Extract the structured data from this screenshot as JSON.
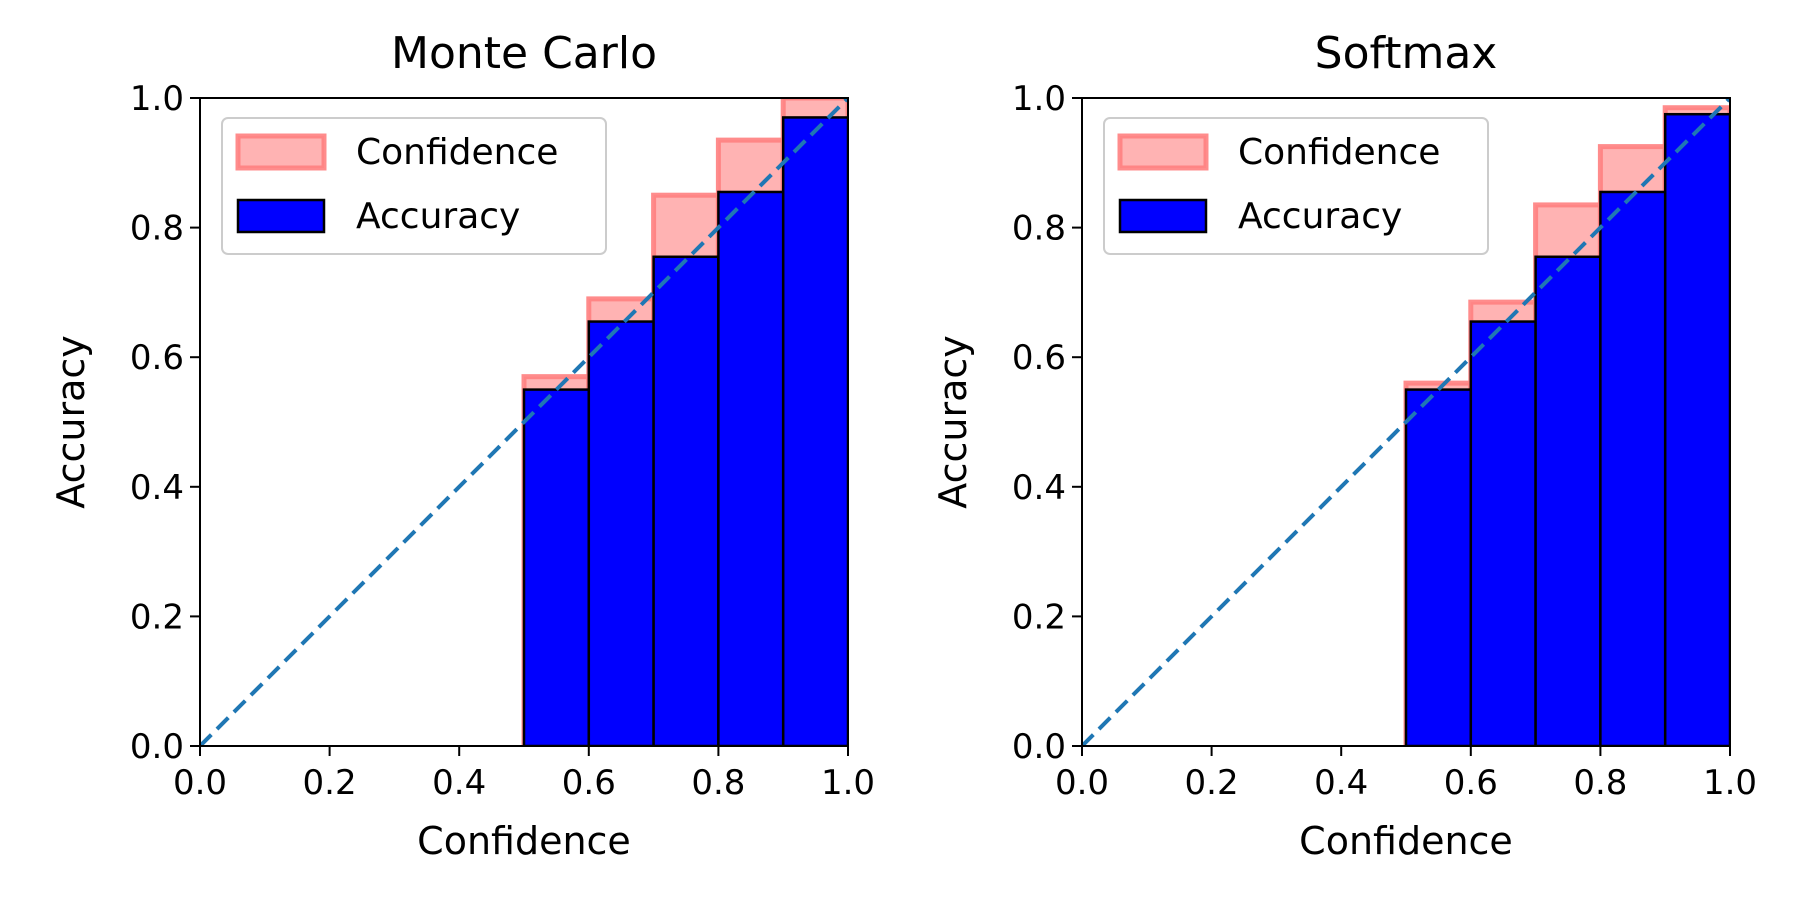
{
  "chart_data": [
    {
      "type": "bar",
      "title": "Monte Carlo",
      "xlabel": "Confidence",
      "ylabel": "Accuracy",
      "xlim": [
        0.0,
        1.0
      ],
      "ylim": [
        0.0,
        1.0
      ],
      "xticks": [
        "0.0",
        "0.2",
        "0.4",
        "0.6",
        "0.8",
        "1.0"
      ],
      "yticks": [
        "0.0",
        "0.2",
        "0.4",
        "0.6",
        "0.8",
        "1.0"
      ],
      "bin_edges": [
        0.0,
        0.1,
        0.2,
        0.3,
        0.4,
        0.5,
        0.6,
        0.7,
        0.8,
        0.9
      ],
      "bin_width": 0.1,
      "series": [
        {
          "name": "Confidence",
          "color": "#ff8080",
          "values": [
            0.0,
            0.0,
            0.0,
            0.0,
            0.0,
            0.57,
            0.69,
            0.85,
            0.935,
            1.0
          ]
        },
        {
          "name": "Accuracy",
          "color": "#0000ff",
          "values": [
            0.0,
            0.0,
            0.0,
            0.0,
            0.0,
            0.55,
            0.655,
            0.755,
            0.855,
            0.97
          ]
        }
      ],
      "reference_line": {
        "style": "dashed",
        "color": "#1f77b4",
        "from": [
          0.0,
          0.0
        ],
        "to": [
          1.0,
          1.0
        ]
      },
      "legend": {
        "placement": "upper-left"
      },
      "grid": false
    },
    {
      "type": "bar",
      "title": "Softmax",
      "xlabel": "Confidence",
      "ylabel": "Accuracy",
      "xlim": [
        0.0,
        1.0
      ],
      "ylim": [
        0.0,
        1.0
      ],
      "xticks": [
        "0.0",
        "0.2",
        "0.4",
        "0.6",
        "0.8",
        "1.0"
      ],
      "yticks": [
        "0.0",
        "0.2",
        "0.4",
        "0.6",
        "0.8",
        "1.0"
      ],
      "bin_edges": [
        0.0,
        0.1,
        0.2,
        0.3,
        0.4,
        0.5,
        0.6,
        0.7,
        0.8,
        0.9
      ],
      "bin_width": 0.1,
      "series": [
        {
          "name": "Confidence",
          "color": "#ff8080",
          "values": [
            0.0,
            0.0,
            0.0,
            0.0,
            0.0,
            0.56,
            0.685,
            0.835,
            0.925,
            0.985
          ]
        },
        {
          "name": "Accuracy",
          "color": "#0000ff",
          "values": [
            0.0,
            0.0,
            0.0,
            0.0,
            0.0,
            0.55,
            0.655,
            0.755,
            0.855,
            0.975
          ]
        }
      ],
      "reference_line": {
        "style": "dashed",
        "color": "#1f77b4",
        "from": [
          0.0,
          0.0
        ],
        "to": [
          1.0,
          1.0
        ]
      },
      "legend": {
        "placement": "upper-left"
      },
      "grid": false
    }
  ]
}
